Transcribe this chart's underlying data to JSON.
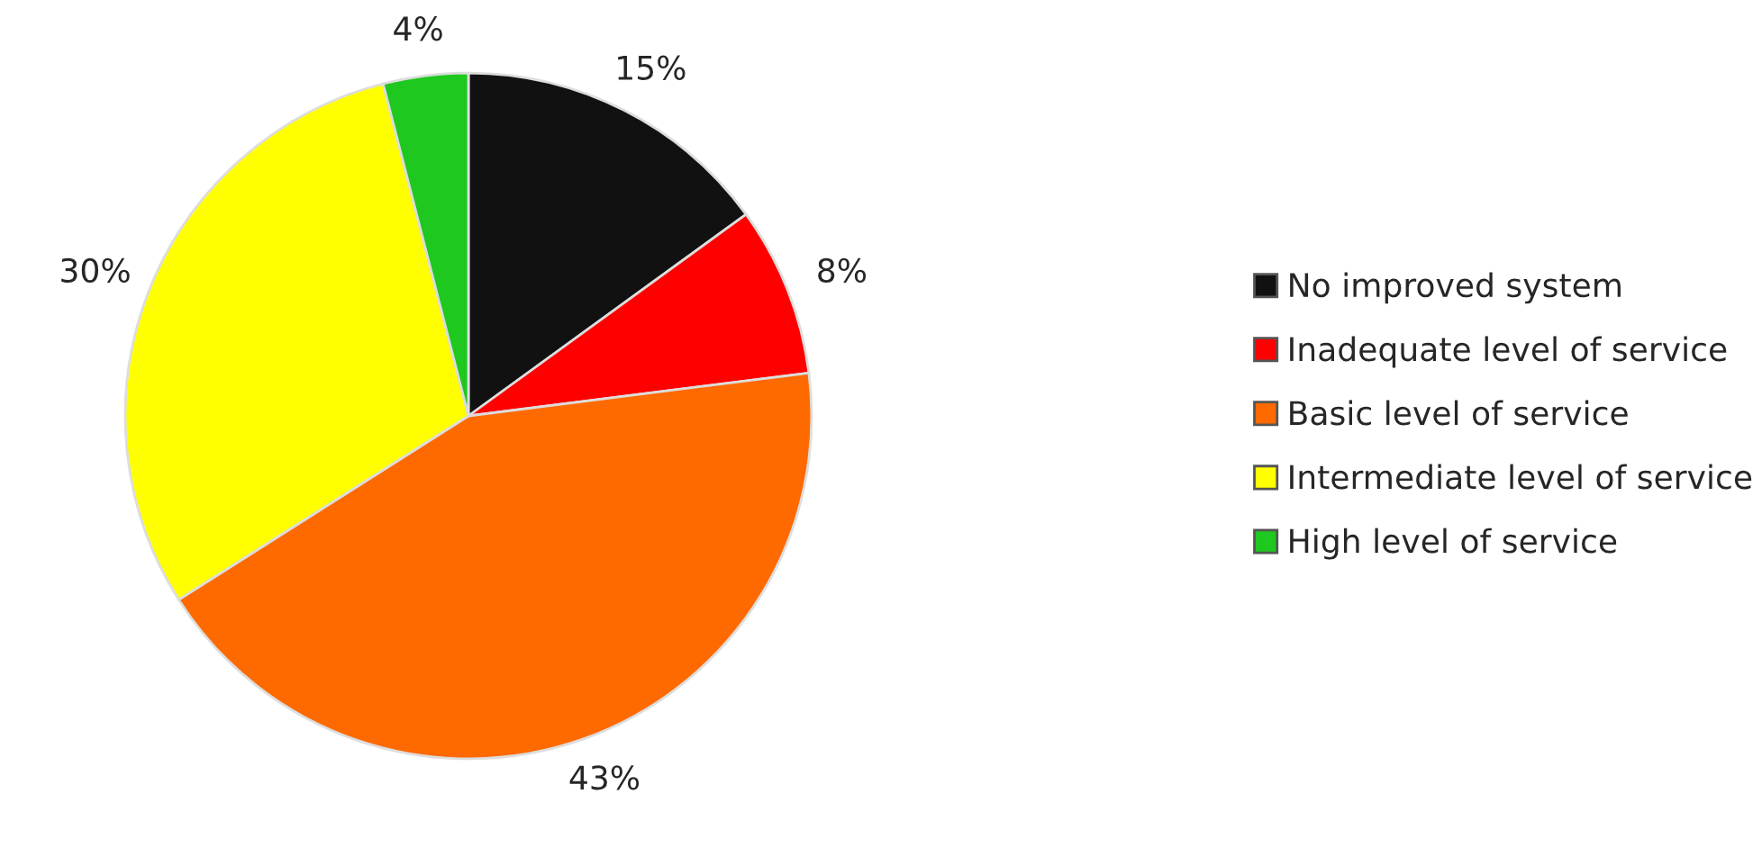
{
  "chart_data": {
    "type": "pie",
    "categories": [
      "No improved system",
      "Inadequate level of service",
      "Basic level of service",
      "Intermediate level of service",
      "High level of service"
    ],
    "values": [
      15,
      8,
      43,
      30,
      4
    ],
    "colors": [
      "#111111",
      "#ff0000",
      "#ff6a00",
      "#ffff00",
      "#1ec81e"
    ],
    "value_labels": [
      "15%",
      "8%",
      "43%",
      "30%",
      "4%"
    ],
    "legend": "right"
  }
}
